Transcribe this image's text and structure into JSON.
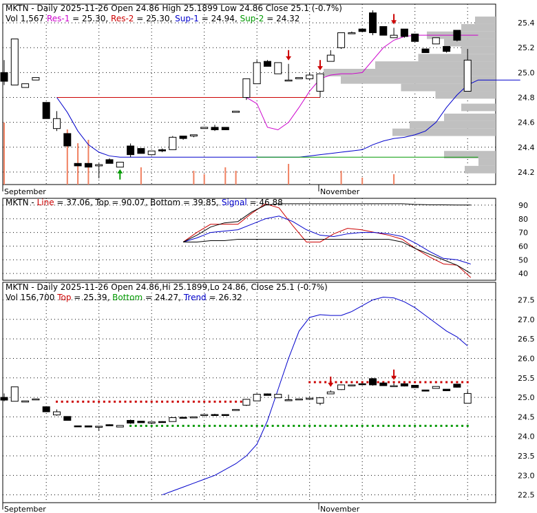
{
  "chart_data": [
    {
      "type": "candlestick",
      "name": "price",
      "header": {
        "line1": [
          {
            "text": "MKTN - Daily 2025-11-26 Open 24.86  High 25.1899  Low 24.86  Close 25.1 (-0.7%)",
            "color": "#000000"
          }
        ],
        "line2": [
          {
            "text": "Vol 1,567 ",
            "color": "#000000"
          },
          {
            "text": "Res-1",
            "color": "#cc00cc"
          },
          {
            "text": " = 25.30, ",
            "color": "#000000"
          },
          {
            "text": "Res-2",
            "color": "#cc0000"
          },
          {
            "text": " = 25.30, ",
            "color": "#000000"
          },
          {
            "text": "Sup-1",
            "color": "#0000cc"
          },
          {
            "text": " = 24.94, ",
            "color": "#000000"
          },
          {
            "text": "Sup-2",
            "color": "#009900"
          },
          {
            "text": " = 24.32",
            "color": "#000000"
          }
        ]
      },
      "ylim": [
        24.1,
        25.55
      ],
      "yticks": [
        24.2,
        24.4,
        24.6,
        24.8,
        25.0,
        25.2,
        25.4
      ],
      "x_labels": [
        {
          "text": "September",
          "i": 0
        },
        {
          "text": "November",
          "i": 30
        }
      ],
      "candles": [
        {
          "o": 25.0,
          "h": 25.1,
          "l": 24.9,
          "c": 24.93
        },
        {
          "o": 24.9,
          "h": 25.27,
          "l": 24.9,
          "c": 25.27
        },
        {
          "o": 24.88,
          "h": 24.91,
          "l": 24.88,
          "c": 24.91
        },
        {
          "o": 24.94,
          "h": 24.96,
          "l": 24.94,
          "c": 24.96
        },
        {
          "o": 24.76,
          "h": 24.76,
          "l": 24.63,
          "c": 24.63
        },
        {
          "o": 24.55,
          "h": 24.69,
          "l": 24.53,
          "c": 24.63
        },
        {
          "o": 24.51,
          "h": 24.51,
          "l": 24.41,
          "c": 24.41
        },
        {
          "o": 24.27,
          "h": 24.27,
          "l": 24.25,
          "c": 24.25
        },
        {
          "o": 24.27,
          "h": 24.27,
          "l": 24.24,
          "c": 24.24
        },
        {
          "o": 24.25,
          "h": 24.27,
          "l": 24.15,
          "c": 24.26
        },
        {
          "o": 24.3,
          "h": 24.31,
          "l": 24.27,
          "c": 24.27
        },
        {
          "o": 24.24,
          "h": 24.28,
          "l": 24.24,
          "c": 24.28
        },
        {
          "o": 24.41,
          "h": 24.43,
          "l": 24.32,
          "c": 24.34
        },
        {
          "o": 24.39,
          "h": 24.39,
          "l": 24.35,
          "c": 24.35
        },
        {
          "o": 24.34,
          "h": 24.37,
          "l": 24.34,
          "c": 24.37
        },
        {
          "o": 24.38,
          "h": 24.39,
          "l": 24.36,
          "c": 24.37
        },
        {
          "o": 24.38,
          "h": 24.49,
          "l": 24.38,
          "c": 24.48
        },
        {
          "o": 24.49,
          "h": 24.49,
          "l": 24.46,
          "c": 24.47
        },
        {
          "o": 24.49,
          "h": 24.5,
          "l": 24.48,
          "c": 24.5
        },
        {
          "o": 24.55,
          "h": 24.56,
          "l": 24.55,
          "c": 24.56
        },
        {
          "o": 24.56,
          "h": 24.58,
          "l": 24.53,
          "c": 24.54
        },
        {
          "o": 24.56,
          "h": 24.56,
          "l": 24.54,
          "c": 24.54
        },
        {
          "o": 24.68,
          "h": 24.69,
          "l": 24.68,
          "c": 24.69
        },
        {
          "o": 24.8,
          "h": 24.95,
          "l": 24.78,
          "c": 24.95
        },
        {
          "o": 24.91,
          "h": 25.1,
          "l": 24.91,
          "c": 25.08
        },
        {
          "o": 25.09,
          "h": 25.1,
          "l": 25.06,
          "c": 25.05
        },
        {
          "o": 24.99,
          "h": 25.08,
          "l": 24.99,
          "c": 25.08
        },
        {
          "o": 24.94,
          "h": 25.07,
          "l": 24.94,
          "c": 24.94
        },
        {
          "o": 24.95,
          "h": 24.96,
          "l": 24.95,
          "c": 24.96
        },
        {
          "o": 24.95,
          "h": 25.0,
          "l": 24.94,
          "c": 24.98
        },
        {
          "o": 24.85,
          "h": 24.99,
          "l": 24.8,
          "c": 24.99
        },
        {
          "o": 25.09,
          "h": 25.18,
          "l": 25.09,
          "c": 25.14
        },
        {
          "o": 25.2,
          "h": 25.32,
          "l": 25.19,
          "c": 25.32
        },
        {
          "o": 25.32,
          "h": 25.33,
          "l": 25.32,
          "c": 25.32
        },
        {
          "o": 25.35,
          "h": 25.35,
          "l": 25.33,
          "c": 25.33
        },
        {
          "o": 25.48,
          "h": 25.5,
          "l": 25.3,
          "c": 25.32
        },
        {
          "o": 25.37,
          "h": 25.37,
          "l": 25.3,
          "c": 25.3
        },
        {
          "o": 25.28,
          "h": 25.36,
          "l": 25.28,
          "c": 25.3
        },
        {
          "o": 25.35,
          "h": 25.35,
          "l": 25.28,
          "c": 25.29
        },
        {
          "o": 25.31,
          "h": 25.31,
          "l": 25.25,
          "c": 25.25
        },
        {
          "o": 25.19,
          "h": 25.19,
          "l": 25.16,
          "c": 25.16
        },
        {
          "o": 25.23,
          "h": 25.28,
          "l": 25.23,
          "c": 25.28
        },
        {
          "o": 25.21,
          "h": 25.21,
          "l": 25.16,
          "c": 25.17
        },
        {
          "o": 25.34,
          "h": 25.34,
          "l": 25.25,
          "c": 25.26
        },
        {
          "o": 24.85,
          "h": 25.19,
          "l": 24.85,
          "c": 25.1
        }
      ],
      "volume": [
        180,
        0,
        0,
        0,
        0,
        0,
        160,
        120,
        130,
        0,
        0,
        0,
        0,
        50,
        0,
        0,
        0,
        0,
        40,
        30,
        0,
        50,
        40,
        0,
        0,
        0,
        0,
        60,
        0,
        0,
        0,
        0,
        40,
        0,
        20,
        0,
        0,
        30,
        0,
        0,
        0,
        0,
        0,
        0,
        0
      ],
      "volume_max": 240,
      "volume_profile": [
        {
          "price": 24.22,
          "w": 0.18
        },
        {
          "price": 24.28,
          "w": 0.1
        },
        {
          "price": 24.34,
          "w": 0.3
        },
        {
          "price": 24.52,
          "w": 0.6
        },
        {
          "price": 24.58,
          "w": 0.5
        },
        {
          "price": 24.64,
          "w": 0.3
        },
        {
          "price": 24.72,
          "w": 0.2
        },
        {
          "price": 24.82,
          "w": 0.35
        },
        {
          "price": 24.88,
          "w": 0.55
        },
        {
          "price": 24.94,
          "w": 0.9
        },
        {
          "price": 25.0,
          "w": 1.0
        },
        {
          "price": 25.06,
          "w": 0.7
        },
        {
          "price": 25.12,
          "w": 0.45
        },
        {
          "price": 25.18,
          "w": 0.2
        },
        {
          "price": 25.24,
          "w": 0.3
        },
        {
          "price": 25.3,
          "w": 0.4
        },
        {
          "price": 25.36,
          "w": 0.2
        },
        {
          "price": 25.42,
          "w": 0.12
        }
      ],
      "lines": [
        {
          "name": "Res-1",
          "color": "#cc00cc",
          "start": 5,
          "values": [
            24.8,
            24.8,
            24.8,
            24.8,
            24.8,
            24.8,
            24.8,
            24.8,
            24.8,
            24.8,
            24.8,
            24.8,
            24.8,
            24.8,
            24.8,
            24.8,
            24.8,
            24.8,
            24.8,
            24.75,
            24.56,
            24.54,
            24.6,
            24.72,
            24.85,
            24.95,
            24.98,
            24.99,
            24.99,
            25.0,
            25.1,
            25.2,
            25.26,
            25.29,
            25.3,
            25.3,
            25.3,
            25.3,
            25.3,
            25.3,
            25.3
          ]
        },
        {
          "name": "Res-2",
          "color": "#cc0000",
          "start": 5,
          "values": [
            24.8,
            24.8,
            24.8,
            24.8,
            24.8,
            24.8,
            24.8,
            24.8,
            24.8,
            24.8,
            24.8,
            24.8,
            24.8,
            24.8,
            24.8,
            24.8,
            24.8,
            24.8,
            24.8,
            24.8,
            24.8,
            24.8,
            24.8,
            24.8,
            24.8,
            24.8
          ]
        },
        {
          "name": "Sup-1",
          "color": "#0000cc",
          "start": 5,
          "values": [
            24.8,
            24.68,
            24.53,
            24.42,
            24.36,
            24.33,
            24.32,
            24.32,
            24.32,
            24.32,
            24.32,
            24.32,
            24.32,
            24.32,
            24.32,
            24.32,
            24.32,
            24.32,
            24.32,
            24.32,
            24.32,
            24.32,
            24.32,
            24.32,
            24.33,
            24.34,
            24.35,
            24.36,
            24.37,
            24.38,
            24.42,
            24.45,
            24.47,
            24.48,
            24.5,
            24.53,
            24.6,
            24.72,
            24.82,
            24.9,
            24.94,
            24.94,
            24.94,
            24.94,
            24.94
          ]
        },
        {
          "name": "Sup-2",
          "color": "#009900",
          "start": 24,
          "values": [
            24.32,
            24.32,
            24.32,
            24.32,
            24.32,
            24.32,
            24.32,
            24.32,
            24.32,
            24.32,
            24.32,
            24.32,
            24.32,
            24.32,
            24.32,
            24.32,
            24.32,
            24.32,
            24.32,
            24.32,
            24.32,
            24.32
          ]
        }
      ],
      "arrows": [
        {
          "i": 11,
          "dir": "up",
          "color": "#009900"
        },
        {
          "i": 27,
          "dir": "down",
          "color": "#cc0000"
        },
        {
          "i": 30,
          "dir": "down",
          "color": "#cc0000"
        },
        {
          "i": 37,
          "dir": "down",
          "color": "#cc0000"
        }
      ]
    },
    {
      "type": "line",
      "name": "oscillator",
      "header": [
        {
          "text": "MKTN - ",
          "color": "#000000"
        },
        {
          "text": "Line",
          "color": "#cc0000"
        },
        {
          "text": " = 37.06, ",
          "color": "#000000"
        },
        {
          "text": "Top",
          "color": "#000000"
        },
        {
          "text": " = 90.07, Bottom = 39.85, ",
          "color": "#000000"
        },
        {
          "text": "Signal",
          "color": "#0000cc"
        },
        {
          "text": " = 46.88",
          "color": "#000000"
        }
      ],
      "ylim": [
        35,
        95
      ],
      "yticks": [
        40,
        50,
        60,
        70,
        80,
        90
      ],
      "series": [
        {
          "name": "Line",
          "color": "#cc0000",
          "start": 17,
          "values": [
            63,
            70,
            76,
            76,
            76,
            84,
            91,
            88,
            75,
            63,
            63,
            69,
            73,
            72,
            70,
            68,
            65,
            58,
            52,
            47,
            46,
            37
          ]
        },
        {
          "name": "Signal",
          "color": "#0000cc",
          "start": 17,
          "values": [
            63,
            66,
            70,
            71,
            72,
            76,
            80,
            82,
            78,
            72,
            68,
            67,
            69,
            70,
            70,
            69,
            67,
            62,
            56,
            51,
            50,
            46.88
          ]
        },
        {
          "name": "Bottom",
          "color": "#000000",
          "start": 17,
          "values": [
            63,
            63,
            64,
            64,
            65,
            65,
            65,
            65,
            65,
            65,
            65,
            65,
            65,
            65,
            65,
            65,
            63,
            58,
            54,
            50,
            46,
            40
          ]
        },
        {
          "name": "Top",
          "color": "#000000",
          "start": 17,
          "values": [
            63,
            68,
            74,
            77,
            78,
            85,
            90,
            91,
            91,
            91,
            91,
            91,
            91,
            91,
            91,
            91,
            91,
            90.5,
            90.3,
            90.2,
            90.1,
            90.07
          ]
        }
      ]
    },
    {
      "type": "candlestick",
      "name": "trend",
      "header": {
        "line1": [
          {
            "text": "MKTN - Daily 2025-11-26 Open 24.86,Hi 25.1899,Lo 24.86, Close 25.1 (-0.7%)",
            "color": "#000000"
          }
        ],
        "line2": [
          {
            "text": "Vol 156,700 ",
            "color": "#000000"
          },
          {
            "text": "Top",
            "color": "#cc0000"
          },
          {
            "text": " = 25.39, ",
            "color": "#000000"
          },
          {
            "text": "Bottom",
            "color": "#009900"
          },
          {
            "text": " = 24.27, ",
            "color": "#000000"
          },
          {
            "text": "Trend",
            "color": "#0000cc"
          },
          {
            "text": " = 26.32",
            "color": "#000000"
          }
        ]
      },
      "ylim": [
        22.3,
        27.95
      ],
      "yticks": [
        22.5,
        23.0,
        23.5,
        24.0,
        24.5,
        25.0,
        25.5,
        26.0,
        26.5,
        27.0,
        27.5
      ],
      "x_labels": [
        {
          "text": "September",
          "i": 0
        },
        {
          "text": "November",
          "i": 30
        }
      ],
      "trend": {
        "color": "#0000cc",
        "start": 15,
        "values": [
          22.5,
          22.6,
          22.7,
          22.8,
          22.9,
          23.0,
          23.15,
          23.3,
          23.5,
          23.8,
          24.4,
          25.2,
          26.0,
          26.7,
          27.05,
          27.12,
          27.1,
          27.1,
          27.2,
          27.35,
          27.5,
          27.57,
          27.55,
          27.45,
          27.3,
          27.1,
          26.9,
          26.7,
          26.55,
          26.32
        ]
      },
      "top_line": {
        "color": "#cc0000",
        "start": 29,
        "value": 25.39
      },
      "bottom_line": {
        "color": "#009900",
        "start": 12,
        "value": 24.27
      },
      "bottom_line_early": {
        "color": "#cc0000",
        "start": 5,
        "end": 23,
        "value": 24.89
      },
      "arrows": [
        {
          "i": 31,
          "dir": "down",
          "color": "#cc0000"
        },
        {
          "i": 37,
          "dir": "down",
          "color": "#cc0000"
        }
      ]
    }
  ]
}
